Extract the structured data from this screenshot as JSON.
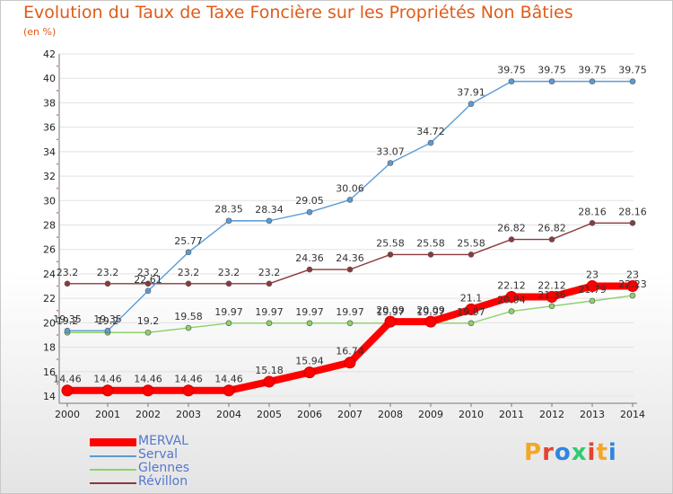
{
  "title": "Evolution du Taux de Taxe Foncière sur les Propriétés Non Bâties",
  "unit_label": "(en %)",
  "brand": "Proxiti",
  "chart_data": {
    "type": "line",
    "title": "Evolution du Taux de Taxe Foncière sur les Propriétés Non Bâties",
    "ylabel": "(en %)",
    "xlabel": "",
    "x": [
      "2000",
      "2001",
      "2002",
      "2003",
      "2004",
      "2005",
      "2006",
      "2007",
      "2008",
      "2009",
      "2010",
      "2011",
      "2012",
      "2013",
      "2014"
    ],
    "ylim": [
      14,
      42
    ],
    "yticks": [
      14,
      16,
      18,
      20,
      22,
      24,
      26,
      28,
      30,
      32,
      34,
      36,
      38,
      40,
      42
    ],
    "grid": "horizontal",
    "legend_position": "bottom-left",
    "series": [
      {
        "name": "MERVAL",
        "color": "#ff0000",
        "values": [
          14.46,
          14.46,
          14.46,
          14.46,
          14.46,
          15.18,
          15.94,
          16.74,
          20.09,
          20.09,
          21.1,
          22.12,
          22.12,
          23,
          23
        ],
        "labels": [
          "14.46",
          "14.46",
          "14.46",
          "14.46",
          "14.46",
          "15.18",
          "15.94",
          "16.74",
          "20.09",
          "20.09",
          "21.1",
          "22.12",
          "22.12",
          "23",
          "23"
        ]
      },
      {
        "name": "Serval",
        "color": "#5b9bd5",
        "values": [
          19.35,
          19.35,
          22.61,
          25.77,
          28.35,
          28.34,
          29.05,
          30.06,
          33.07,
          34.72,
          37.91,
          39.75,
          39.75,
          39.75,
          39.75
        ],
        "labels": [
          "19.35",
          "19.35",
          "22.61",
          "25.77",
          "28.35",
          "28.34",
          "29.05",
          "30.06",
          "33.07",
          "34.72",
          "37.91",
          "39.75",
          "39.75",
          "39.75",
          "39.75"
        ]
      },
      {
        "name": "Glennes",
        "color": "#8ed16a",
        "values": [
          19.2,
          19.2,
          19.2,
          19.58,
          19.97,
          19.97,
          19.97,
          19.97,
          19.97,
          19.97,
          19.97,
          20.94,
          21.36,
          21.79,
          22.23
        ],
        "labels": [
          "19.2",
          "19.2",
          "19.2",
          "19.58",
          "19.97",
          "19.97",
          "19.97",
          "19.97",
          "19.97",
          "19.97",
          "19.97",
          "20.94",
          "21.36",
          "21.79",
          "22.23"
        ]
      },
      {
        "name": "Révillon",
        "color": "#8b3a3a",
        "values": [
          23.2,
          23.2,
          23.2,
          23.2,
          23.2,
          23.2,
          24.36,
          24.36,
          25.58,
          25.58,
          25.58,
          26.82,
          26.82,
          28.16,
          28.16
        ],
        "labels": [
          "23.2",
          "23.2",
          "23.2",
          "23.2",
          "23.2",
          "23.2",
          "24.36",
          "24.36",
          "25.58",
          "25.58",
          "25.58",
          "26.82",
          "26.82",
          "28.16",
          "28.16"
        ]
      }
    ]
  },
  "brand_colors": [
    "#f5a623",
    "#e2442f",
    "#2e86de",
    "#2ecc71",
    "#e2442f",
    "#f5a623",
    "#2e86de"
  ]
}
